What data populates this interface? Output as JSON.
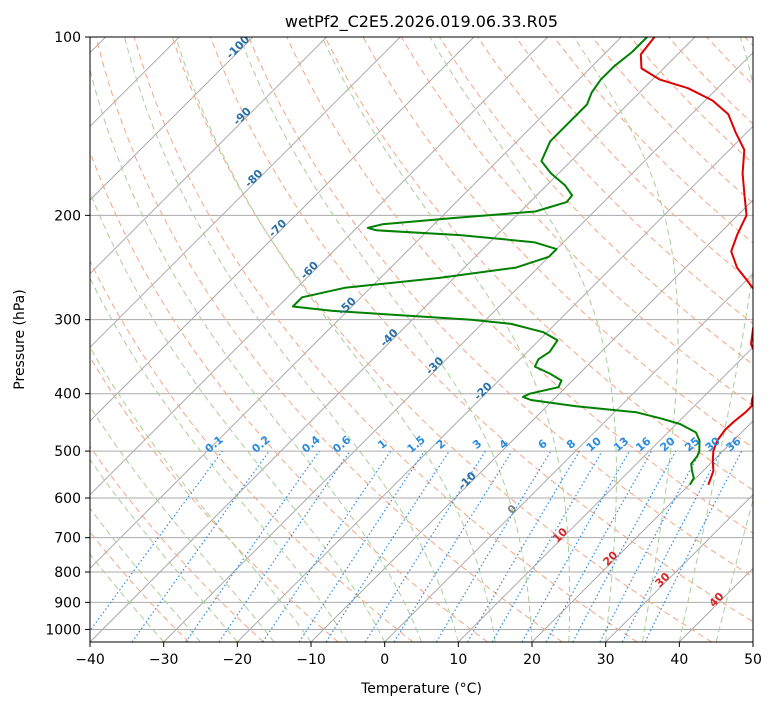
{
  "chart_data": {
    "type": "line",
    "title": "wetPf2_C2E5.2026.019.06.33.R05",
    "xlabel": "Temperature (°C)",
    "ylabel": "Pressure (hPa)",
    "xlim": [
      -40,
      50
    ],
    "ylim": [
      1050,
      100
    ],
    "y_scale": "log",
    "skew": true,
    "x_ticks": [
      -40,
      -30,
      -20,
      -10,
      0,
      10,
      20,
      30,
      40,
      50
    ],
    "y_ticks": [
      1000,
      900,
      800,
      700,
      600,
      500,
      400,
      300,
      200,
      100
    ],
    "grid": true,
    "series": [
      {
        "color": "#e00000",
        "points": [
          [
            570,
            22.6
          ],
          [
            555,
            22.0
          ],
          [
            540,
            21.4
          ],
          [
            520,
            20.0
          ],
          [
            500,
            18.7
          ],
          [
            480,
            17.8
          ],
          [
            460,
            17.4
          ],
          [
            445,
            17.5
          ],
          [
            430,
            17.8
          ],
          [
            420,
            17.8
          ],
          [
            410,
            17.0
          ],
          [
            400,
            16.4
          ],
          [
            385,
            16.0
          ],
          [
            370,
            14.9
          ],
          [
            350,
            12.3
          ],
          [
            330,
            9.3
          ],
          [
            310,
            7.4
          ],
          [
            290,
            5.9
          ],
          [
            280,
            5.0
          ],
          [
            270,
            3.0
          ],
          [
            255,
            -0.5
          ],
          [
            245,
            -3.0
          ],
          [
            230,
            -6.0
          ],
          [
            215,
            -7.5
          ],
          [
            200,
            -8.8
          ],
          [
            185,
            -11.8
          ],
          [
            170,
            -15.0
          ],
          [
            155,
            -18.0
          ],
          [
            145,
            -21.5
          ],
          [
            135,
            -25.0
          ],
          [
            128,
            -29.0
          ],
          [
            122,
            -34.0
          ],
          [
            118,
            -39.0
          ],
          [
            113,
            -43.0
          ],
          [
            107,
            -45.0
          ],
          [
            100,
            -45.5
          ]
        ]
      },
      {
        "color": "#008000",
        "points": [
          [
            570,
            20.1
          ],
          [
            555,
            19.7
          ],
          [
            540,
            18.5
          ],
          [
            525,
            17.4
          ],
          [
            510,
            17.2
          ],
          [
            500,
            16.8
          ],
          [
            480,
            15.4
          ],
          [
            465,
            13.8
          ],
          [
            450,
            10.5
          ],
          [
            440,
            7.0
          ],
          [
            430,
            3.0
          ],
          [
            420,
            -6.0
          ],
          [
            410,
            -13.0
          ],
          [
            405,
            -14.5
          ],
          [
            400,
            -14.0
          ],
          [
            390,
            -11.0
          ],
          [
            380,
            -11.5
          ],
          [
            370,
            -14.0
          ],
          [
            360,
            -17.0
          ],
          [
            350,
            -17.5
          ],
          [
            340,
            -17.0
          ],
          [
            325,
            -17.5
          ],
          [
            315,
            -20.5
          ],
          [
            305,
            -26.0
          ],
          [
            300,
            -32.0
          ],
          [
            290,
            -52.0
          ],
          [
            285,
            -58.0
          ],
          [
            275,
            -58.0
          ],
          [
            265,
            -53.5
          ],
          [
            255,
            -42.0
          ],
          [
            245,
            -33.0
          ],
          [
            235,
            -30.0
          ],
          [
            228,
            -30.0
          ],
          [
            222,
            -34.0
          ],
          [
            216,
            -45.0
          ],
          [
            212,
            -57.0
          ],
          [
            210,
            -58.5
          ],
          [
            207,
            -57.0
          ],
          [
            202,
            -48.0
          ],
          [
            197,
            -38.0
          ],
          [
            190,
            -35.0
          ],
          [
            185,
            -35.2
          ],
          [
            178,
            -37.5
          ],
          [
            170,
            -41.0
          ],
          [
            162,
            -44.0
          ],
          [
            150,
            -45.5
          ],
          [
            140,
            -45.5
          ],
          [
            130,
            -45.5
          ],
          [
            124,
            -46.5
          ],
          [
            118,
            -47.0
          ],
          [
            112,
            -47.0
          ],
          [
            106,
            -46.5
          ],
          [
            100,
            -46.5
          ]
        ]
      }
    ],
    "dry_adiabat_labels": [
      "-100",
      "-90",
      "-80",
      "-70",
      "-60",
      "-50",
      "-40",
      "-30",
      "-20",
      "-10",
      "0",
      "10",
      "20",
      "30",
      "40"
    ],
    "mixing_ratio_labels": [
      "0.1",
      "0.2",
      "0.4",
      "0.6",
      "1",
      "1.5",
      "2",
      "3",
      "4",
      "6",
      "8",
      "10",
      "13",
      "16",
      "20",
      "25",
      "30",
      "36"
    ],
    "colors": {
      "temperature": "#e00000",
      "dewpoint": "#008000",
      "isotherm": "#aaaaaa",
      "dry_adiabat": "#f4a582",
      "moist_adiabat": "#a6d096",
      "mixing_ratio": "#2b8cde",
      "label_cold": "#2a6fa5",
      "label_warm": "#d62728",
      "label_zero": "#808080"
    }
  }
}
